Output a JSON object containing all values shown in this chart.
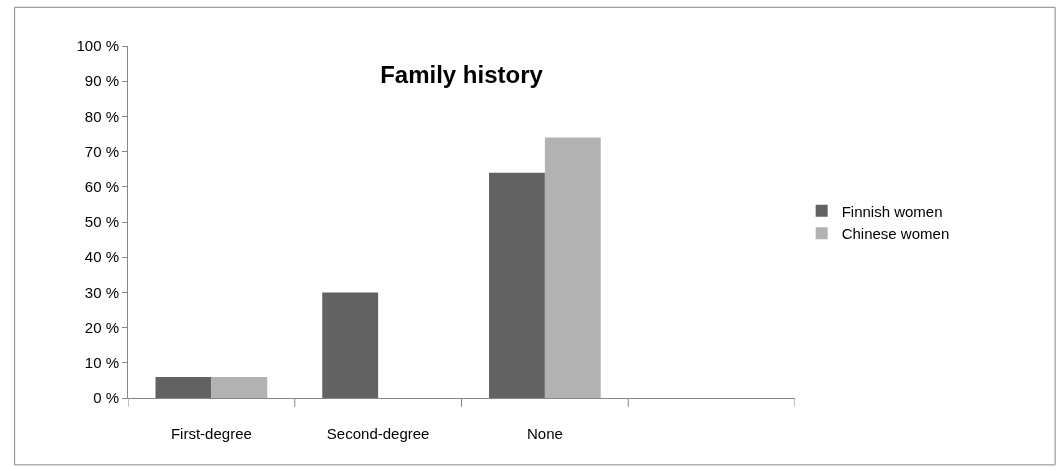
{
  "chart_data": {
    "type": "bar",
    "title": "Family history",
    "categories": [
      "First-degree",
      "Second-degree",
      "None",
      null
    ],
    "series": [
      {
        "name": "Finnish women",
        "color": "#626262",
        "values": [
          6,
          30,
          64,
          null
        ]
      },
      {
        "name": "Chinese women",
        "color": "#b2b2b2",
        "values": [
          6,
          null,
          74,
          null
        ]
      }
    ],
    "ylim": [
      0,
      100
    ],
    "yticks": [
      {
        "value": 0,
        "label": "0 %"
      },
      {
        "value": 10,
        "label": "10 %"
      },
      {
        "value": 20,
        "label": "20 %"
      },
      {
        "value": 30,
        "label": "30 %"
      },
      {
        "value": 40,
        "label": "40 %"
      },
      {
        "value": 50,
        "label": "50 %"
      },
      {
        "value": 60,
        "label": "60 %"
      },
      {
        "value": 70,
        "label": "70 %"
      },
      {
        "value": 80,
        "label": "80 %"
      },
      {
        "value": 90,
        "label": "90 %"
      },
      {
        "value": 100,
        "label": "100 %"
      }
    ],
    "legend": "right"
  }
}
